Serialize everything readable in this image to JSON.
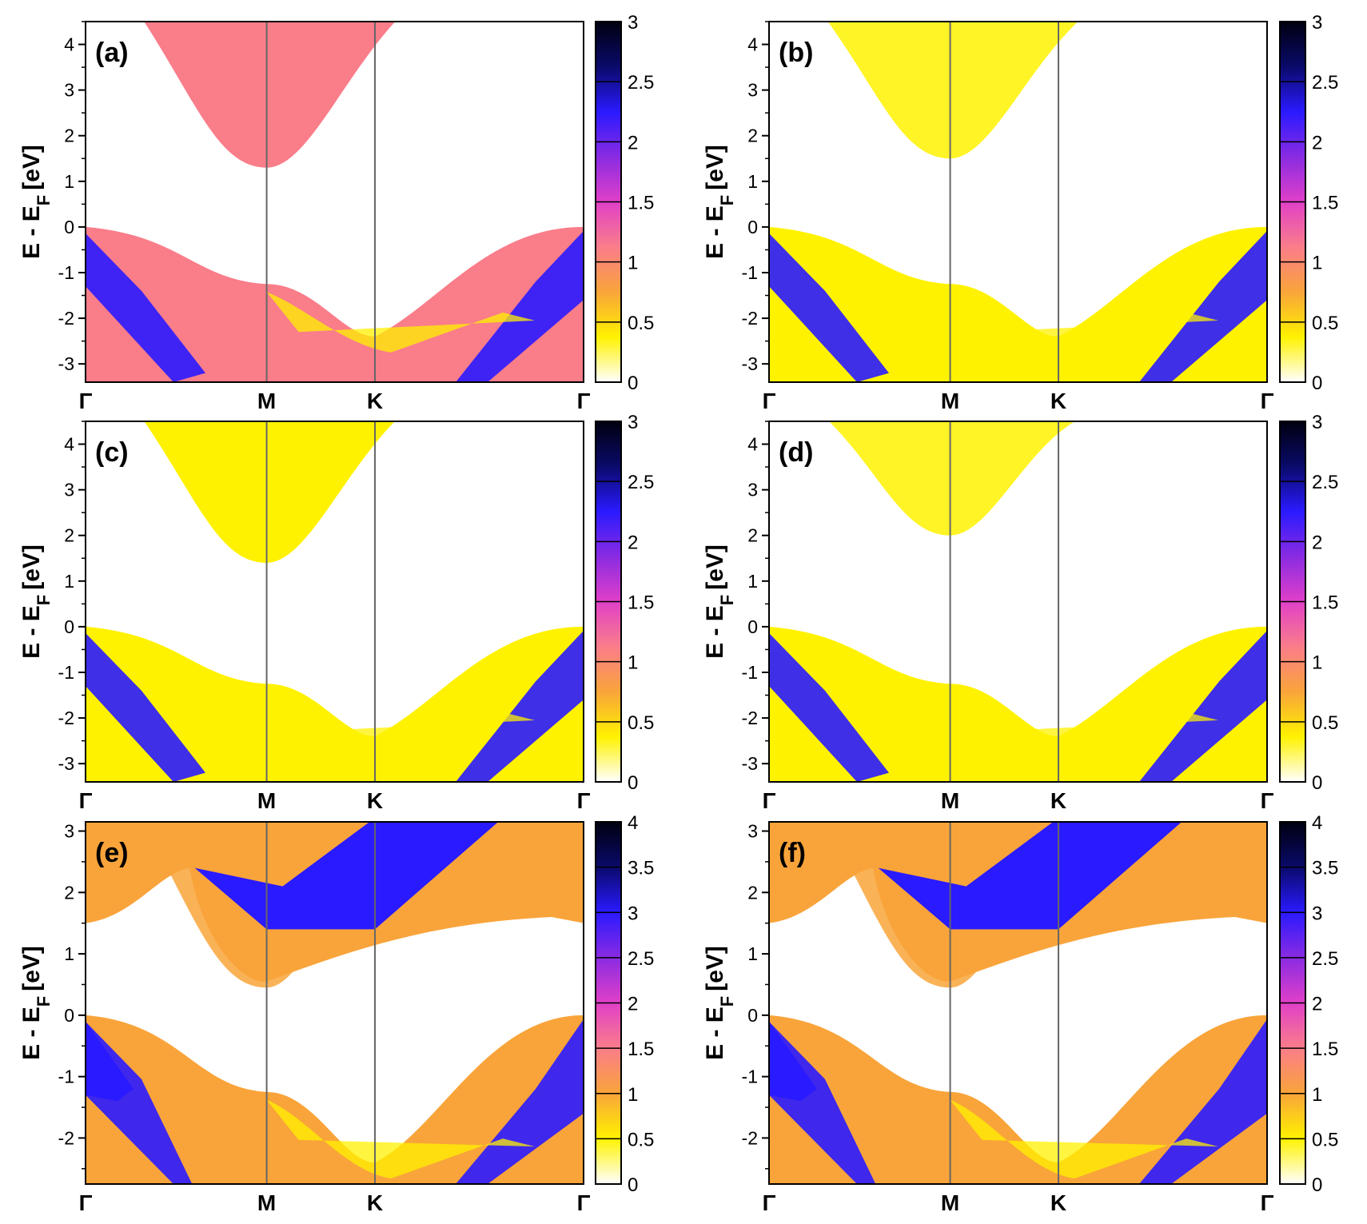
{
  "chart_data": [
    {
      "type": "heatmap",
      "panel": "(a)",
      "ylabel": "E - E_F [eV]",
      "ylim": [
        -3.4,
        4.5
      ],
      "yticks": [
        "4",
        "3",
        "2",
        "1",
        "0",
        "-1",
        "-2",
        "-3"
      ],
      "kpath": [
        "Γ",
        "M",
        "K",
        "Γ"
      ],
      "colorbar": {
        "range": [
          0,
          3
        ],
        "ticks": [
          "3",
          "2.5",
          "2",
          "1.5",
          "1",
          "0.5",
          "0"
        ]
      },
      "bands": {
        "valence_top_eV": 0.0,
        "conduction_min_eV": 1.3,
        "conduction_min_at": "M",
        "dominant_value": 1.1
      }
    },
    {
      "type": "heatmap",
      "panel": "(b)",
      "ylabel": "E - E_F [eV]",
      "ylim": [
        -3.4,
        4.5
      ],
      "yticks": [
        "4",
        "3",
        "2",
        "1",
        "0",
        "-1",
        "-2",
        "-3"
      ],
      "kpath": [
        "Γ",
        "M",
        "K",
        "Γ"
      ],
      "colorbar": {
        "range": [
          0,
          3
        ],
        "ticks": [
          "3",
          "2.5",
          "2",
          "1.5",
          "1",
          "0.5",
          "0"
        ]
      },
      "bands": {
        "valence_top_eV": 0.0,
        "conduction_min_eV": 1.5,
        "conduction_min_at": "M",
        "dominant_value": 0.3
      }
    },
    {
      "type": "heatmap",
      "panel": "(c)",
      "ylabel": "E - E_F [eV]",
      "ylim": [
        -3.4,
        4.5
      ],
      "yticks": [
        "4",
        "3",
        "2",
        "1",
        "0",
        "-1",
        "-2",
        "-3"
      ],
      "kpath": [
        "Γ",
        "M",
        "K",
        "Γ"
      ],
      "colorbar": {
        "range": [
          0,
          3
        ],
        "ticks": [
          "3",
          "2.5",
          "2",
          "1.5",
          "1",
          "0.5",
          "0"
        ]
      },
      "bands": {
        "valence_top_eV": 0.0,
        "conduction_min_eV": 1.4,
        "conduction_min_at": "M",
        "dominant_value": 0.2
      }
    },
    {
      "type": "heatmap",
      "panel": "(d)",
      "ylabel": "E - E_F [eV]",
      "ylim": [
        -3.4,
        4.5
      ],
      "yticks": [
        "4",
        "3",
        "2",
        "1",
        "0",
        "-1",
        "-2",
        "-3"
      ],
      "kpath": [
        "Γ",
        "M",
        "K",
        "Γ"
      ],
      "colorbar": {
        "range": [
          0,
          3
        ],
        "ticks": [
          "3",
          "2.5",
          "2",
          "1.5",
          "1",
          "0.5",
          "0"
        ]
      },
      "bands": {
        "valence_top_eV": 0.0,
        "conduction_min_eV": 2.0,
        "conduction_min_at": "M",
        "dominant_value": 0.3
      }
    },
    {
      "type": "heatmap",
      "panel": "(e)",
      "ylabel": "E - E_F [eV]",
      "ylim": [
        -2.75,
        3.15
      ],
      "yticks": [
        "3",
        "2",
        "1",
        "0",
        "-1",
        "-2"
      ],
      "kpath": [
        "Γ",
        "M",
        "K",
        "Γ"
      ],
      "colorbar": {
        "range": [
          0,
          4
        ],
        "ticks": [
          "4",
          "3.5",
          "3",
          "2.5",
          "2",
          "1.5",
          "1",
          "0.5",
          "0"
        ]
      },
      "bands": {
        "valence_top_eV": 0.0,
        "conduction_min_eV": 0.45,
        "conduction_min_at": "M",
        "dominant_value": 1.2
      }
    },
    {
      "type": "heatmap",
      "panel": "(f)",
      "ylabel": "E - E_F [eV]",
      "ylim": [
        -2.75,
        3.15
      ],
      "yticks": [
        "3",
        "2",
        "1",
        "0",
        "-1",
        "-2"
      ],
      "kpath": [
        "Γ",
        "M",
        "K",
        "Γ"
      ],
      "colorbar": {
        "range": [
          0,
          4
        ],
        "ticks": [
          "4",
          "3.5",
          "3",
          "2.5",
          "2",
          "1.5",
          "1",
          "0.5",
          "0"
        ]
      },
      "bands": {
        "valence_top_eV": 0.0,
        "conduction_min_eV": 0.45,
        "conduction_min_at": "M",
        "dominant_value": 1.0
      }
    }
  ],
  "colormap": [
    "#ffffff",
    "#fff200",
    "#f9a43a",
    "#fa7d8a",
    "#e040c8",
    "#8a2be2",
    "#2a1aff",
    "#0a0a6a",
    "#000010"
  ],
  "colors": {
    "kline": "#666666",
    "frame": "#000000"
  }
}
